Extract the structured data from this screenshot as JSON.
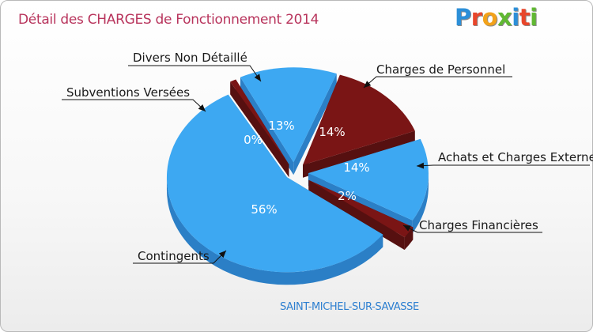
{
  "header": {
    "title": "Détail des CHARGES de Fonctionnement 2014",
    "logo_text": "Proxiti",
    "subtitle": "SAINT-MICHEL-SUR-SAVASSE"
  },
  "colors": {
    "blue": "#3da8f2",
    "blue_side": "#2a7cc2",
    "dark_red": "#7a1515",
    "dark_red_side": "#5a0e0e",
    "title": "#b8345c",
    "place": "#2d7fd0"
  },
  "chart_data": {
    "type": "pie",
    "style": "3d-exploded",
    "title": "Détail des CHARGES de Fonctionnement 2014",
    "slices": [
      {
        "name": "Charges de Personnel",
        "value": 14,
        "label": "14%",
        "color": "#7a1515"
      },
      {
        "name": "Achats et Charges Externes",
        "value": 14,
        "label": "14%",
        "color": "#3da8f2"
      },
      {
        "name": "Charges Financières",
        "value": 2,
        "label": "2%",
        "color": "#7a1515"
      },
      {
        "name": "Contingents",
        "value": 56,
        "label": "56%",
        "color": "#3da8f2"
      },
      {
        "name": "Subventions Versées",
        "value": 0,
        "label": "0%",
        "color": "#7a1515"
      },
      {
        "name": "Divers Non Détaillé",
        "value": 13,
        "label": "13%",
        "color": "#3da8f2"
      }
    ]
  }
}
